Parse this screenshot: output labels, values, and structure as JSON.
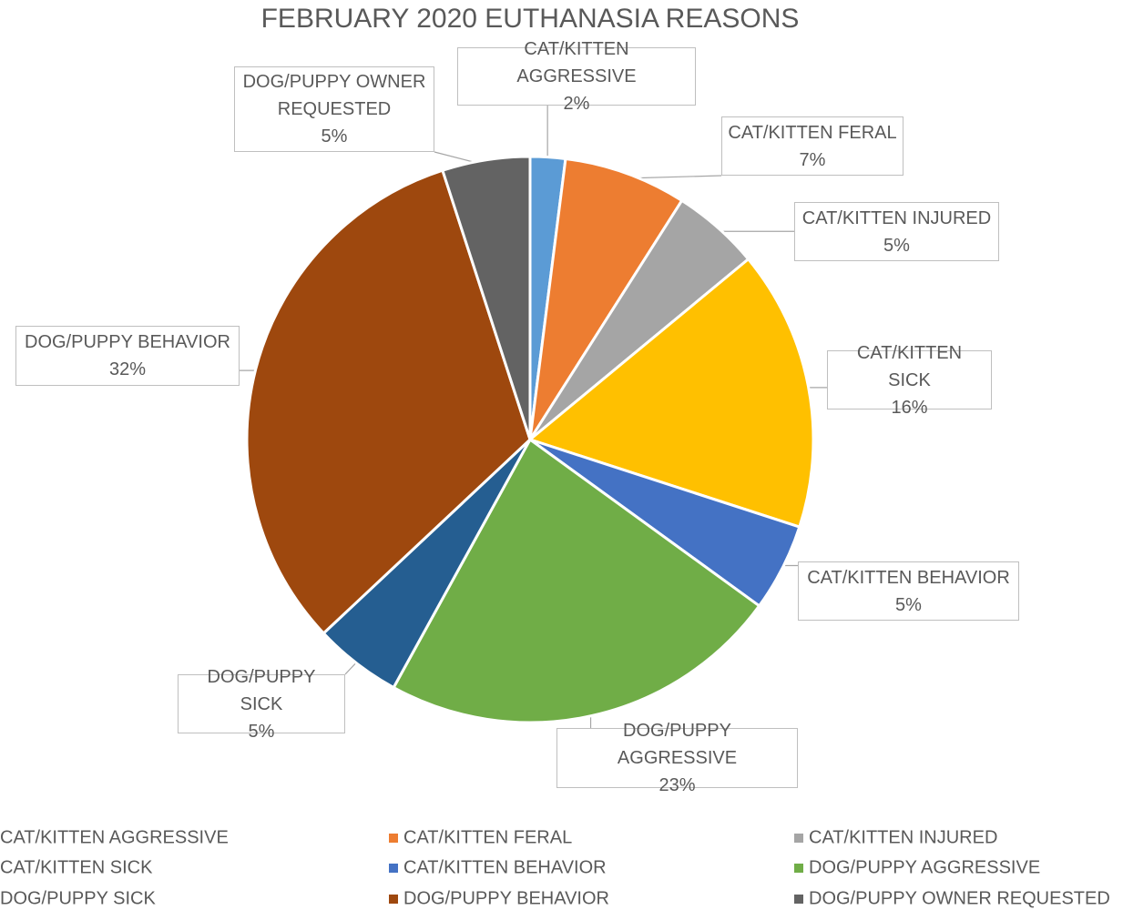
{
  "chart_data": {
    "type": "pie",
    "title": "FEBRUARY 2020 EUTHANASIA REASONS",
    "categories": [
      "CAT/KITTEN AGGRESSIVE",
      "CAT/KITTEN FERAL",
      "CAT/KITTEN INJURED",
      "CAT/KITTEN SICK",
      "CAT/KITTEN BEHAVIOR",
      "DOG/PUPPY AGGRESSIVE",
      "DOG/PUPPY SICK",
      "DOG/PUPPY BEHAVIOR",
      "DOG/PUPPY OWNER REQUESTED"
    ],
    "values": [
      2,
      7,
      5,
      16,
      5,
      23,
      5,
      32,
      5
    ],
    "value_labels": [
      "2%",
      "7%",
      "5%",
      "16%",
      "5%",
      "23%",
      "5%",
      "32%",
      "5%"
    ],
    "colors": [
      "#5b9bd5",
      "#ed7d31",
      "#a5a5a5",
      "#ffc000",
      "#4472c4",
      "#70ad47",
      "#255e91",
      "#9e480e",
      "#636363"
    ],
    "legend": "bottom"
  }
}
